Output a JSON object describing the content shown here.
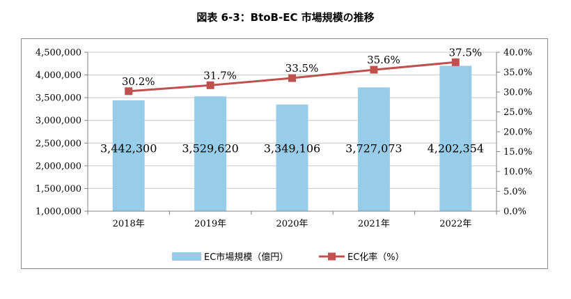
{
  "chart_data": {
    "type": "bar",
    "title": "図表 6-3：BtoB-EC 市場規模の推移",
    "categories": [
      "2018年",
      "2019年",
      "2020年",
      "2021年",
      "2022年"
    ],
    "series": [
      {
        "name": "EC市場規模（億円）",
        "type": "bar",
        "axis": "left",
        "color": "#97cde9",
        "values": [
          3442300,
          3529620,
          3349106,
          3727073,
          4202354
        ],
        "labels": [
          "3,442,300",
          "3,529,620",
          "3,349,106",
          "3,727,073",
          "4,202,354"
        ]
      },
      {
        "name": "EC化率（%）",
        "type": "line",
        "axis": "right",
        "color": "#c0504d",
        "values": [
          30.2,
          31.7,
          33.5,
          35.6,
          37.5
        ],
        "labels": [
          "30.2%",
          "31.7%",
          "33.5%",
          "35.6%",
          "37.5%"
        ]
      }
    ],
    "y_left": {
      "range": [
        1000000,
        4500000
      ],
      "ticks": [
        "1,000,000",
        "1,500,000",
        "2,000,000",
        "2,500,000",
        "3,000,000",
        "3,500,000",
        "4,000,000",
        "4,500,000"
      ],
      "tick_values": [
        1000000,
        1500000,
        2000000,
        2500000,
        3000000,
        3500000,
        4000000,
        4500000
      ]
    },
    "y_right": {
      "range": [
        0,
        40
      ],
      "ticks": [
        "0.0%",
        "5.0%",
        "10.0%",
        "15.0%",
        "20.0%",
        "25.0%",
        "30.0%",
        "35.0%",
        "40.0%"
      ],
      "tick_values": [
        0,
        5,
        10,
        15,
        20,
        25,
        30,
        35,
        40
      ]
    },
    "grid": true,
    "legend": "bottom"
  }
}
